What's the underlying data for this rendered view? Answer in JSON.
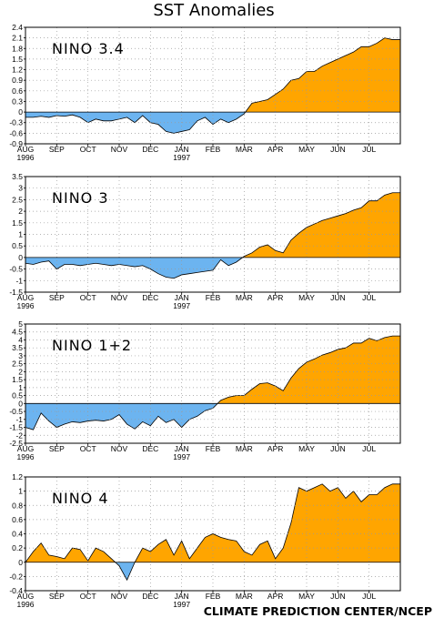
{
  "title": "SST Anomalies",
  "credit": "CLIMATE PREDICTION CENTER/NCEP",
  "colors": {
    "positive": "#FFA500",
    "negative": "#6CB4F0",
    "grid": "#9a9a9a"
  },
  "months": [
    "AUG",
    "SEP",
    "OCT",
    "NOV",
    "DEC",
    "JAN",
    "FEB",
    "MAR",
    "APR",
    "MAY",
    "JUN",
    "JUL"
  ],
  "year_start": "1996",
  "year_mid": "1997",
  "chart_data": [
    {
      "type": "area",
      "title": "NINO 3.4",
      "ylim": [
        -0.9,
        2.4
      ],
      "yticks": [
        "2.4",
        "2.1",
        "1.8",
        "1.5",
        "1.2",
        "0.9",
        "0.6",
        "0.3",
        "0",
        "-0.3",
        "-0.6",
        "-0.9"
      ],
      "x": [
        0,
        0.25,
        0.5,
        0.75,
        1,
        1.25,
        1.5,
        1.75,
        2,
        2.25,
        2.5,
        2.75,
        3,
        3.25,
        3.5,
        3.75,
        4,
        4.25,
        4.5,
        4.75,
        5,
        5.25,
        5.5,
        5.75,
        6,
        6.25,
        6.5,
        6.75,
        7,
        7.25,
        7.5,
        7.75,
        8,
        8.25,
        8.5,
        8.75,
        9,
        9.25,
        9.5,
        9.75,
        10,
        10.25,
        10.5,
        10.75,
        11,
        11.25,
        11.5,
        11.75
      ],
      "values": [
        -0.15,
        -0.15,
        -0.12,
        -0.15,
        -0.1,
        -0.12,
        -0.08,
        -0.15,
        -0.3,
        -0.2,
        -0.25,
        -0.25,
        -0.2,
        -0.15,
        -0.3,
        -0.1,
        -0.3,
        -0.35,
        -0.55,
        -0.6,
        -0.55,
        -0.5,
        -0.25,
        -0.15,
        -0.35,
        -0.2,
        -0.3,
        -0.2,
        -0.05,
        0.25,
        0.3,
        0.35,
        0.5,
        0.65,
        0.9,
        0.95,
        1.15,
        1.15,
        1.3,
        1.4,
        1.5,
        1.6,
        1.7,
        1.85,
        1.85,
        1.95,
        2.1,
        2.05
      ]
    },
    {
      "type": "area",
      "title": "NINO 3",
      "ylim": [
        -1.5,
        3.5
      ],
      "yticks": [
        "3.5",
        "3",
        "2.5",
        "2",
        "1.5",
        "1",
        "0.5",
        "0",
        "-0.5",
        "-1",
        "-1.5"
      ],
      "x": [
        0,
        0.25,
        0.5,
        0.75,
        1,
        1.25,
        1.5,
        1.75,
        2,
        2.25,
        2.5,
        2.75,
        3,
        3.25,
        3.5,
        3.75,
        4,
        4.25,
        4.5,
        4.75,
        5,
        5.25,
        5.5,
        5.75,
        6,
        6.25,
        6.5,
        6.75,
        7,
        7.25,
        7.5,
        7.75,
        8,
        8.25,
        8.5,
        8.75,
        9,
        9.25,
        9.5,
        9.75,
        10,
        10.25,
        10.5,
        10.75,
        11,
        11.25,
        11.5,
        11.75
      ],
      "values": [
        -0.25,
        -0.3,
        -0.2,
        -0.15,
        -0.5,
        -0.3,
        -0.3,
        -0.35,
        -0.3,
        -0.25,
        -0.3,
        -0.35,
        -0.3,
        -0.35,
        -0.4,
        -0.35,
        -0.5,
        -0.7,
        -0.85,
        -0.9,
        -0.75,
        -0.7,
        -0.65,
        -0.6,
        -0.55,
        -0.1,
        -0.35,
        -0.2,
        0.05,
        0.2,
        0.45,
        0.55,
        0.3,
        0.2,
        0.75,
        1.05,
        1.3,
        1.45,
        1.6,
        1.7,
        1.8,
        1.9,
        2.05,
        2.15,
        2.45,
        2.45,
        2.7,
        2.8
      ]
    },
    {
      "type": "area",
      "title": "NINO 1+2",
      "ylim": [
        -2.5,
        5
      ],
      "yticks": [
        "5",
        "4.5",
        "4",
        "3.5",
        "3",
        "2.5",
        "2",
        "1.5",
        "1",
        "0.5",
        "0",
        "-0.5",
        "-1",
        "-1.5",
        "-2",
        "-2.5"
      ],
      "x": [
        0,
        0.25,
        0.5,
        0.75,
        1,
        1.25,
        1.5,
        1.75,
        2,
        2.25,
        2.5,
        2.75,
        3,
        3.25,
        3.5,
        3.75,
        4,
        4.25,
        4.5,
        4.75,
        5,
        5.25,
        5.5,
        5.75,
        6,
        6.25,
        6.5,
        6.75,
        7,
        7.25,
        7.5,
        7.75,
        8,
        8.25,
        8.5,
        8.75,
        9,
        9.25,
        9.5,
        9.75,
        10,
        10.25,
        10.5,
        10.75,
        11,
        11.25,
        11.5,
        11.75
      ],
      "values": [
        -1.5,
        -1.65,
        -0.6,
        -1.1,
        -1.5,
        -1.3,
        -1.15,
        -1.2,
        -1.1,
        -1.05,
        -1.1,
        -1.0,
        -0.7,
        -1.3,
        -1.6,
        -1.15,
        -1.4,
        -0.8,
        -1.2,
        -1.0,
        -1.5,
        -1.0,
        -0.8,
        -0.45,
        -0.3,
        0.2,
        0.4,
        0.5,
        0.5,
        0.9,
        1.25,
        1.3,
        1.1,
        0.8,
        1.6,
        2.2,
        2.6,
        2.8,
        3.05,
        3.2,
        3.4,
        3.5,
        3.8,
        3.8,
        4.1,
        3.95,
        4.15,
        4.25
      ]
    },
    {
      "type": "area",
      "title": "NINO 4",
      "ylim": [
        -0.4,
        1.2
      ],
      "yticks": [
        "1.2",
        "1",
        "0.8",
        "0.6",
        "0.4",
        "0.2",
        "0",
        "-0.2",
        "-0.4"
      ],
      "x": [
        0,
        0.25,
        0.5,
        0.75,
        1,
        1.25,
        1.5,
        1.75,
        2,
        2.25,
        2.5,
        2.75,
        3,
        3.25,
        3.5,
        3.75,
        4,
        4.25,
        4.5,
        4.75,
        5,
        5.25,
        5.5,
        5.75,
        6,
        6.25,
        6.5,
        6.75,
        7,
        7.25,
        7.5,
        7.75,
        8,
        8.25,
        8.5,
        8.75,
        9,
        9.25,
        9.5,
        9.75,
        10,
        10.25,
        10.5,
        10.75,
        11,
        11.25,
        11.5,
        11.75
      ],
      "values": [
        0.0,
        0.15,
        0.27,
        0.1,
        0.08,
        0.05,
        0.2,
        0.18,
        0.02,
        0.2,
        0.15,
        0.05,
        -0.05,
        -0.25,
        0.0,
        0.2,
        0.15,
        0.25,
        0.32,
        0.1,
        0.3,
        0.05,
        0.2,
        0.35,
        0.4,
        0.35,
        0.32,
        0.3,
        0.15,
        0.1,
        0.25,
        0.3,
        0.05,
        0.2,
        0.55,
        1.05,
        1.0,
        1.05,
        1.1,
        1.0,
        1.05,
        0.9,
        1.0,
        0.85,
        0.95,
        0.95,
        1.05,
        1.1
      ]
    }
  ]
}
